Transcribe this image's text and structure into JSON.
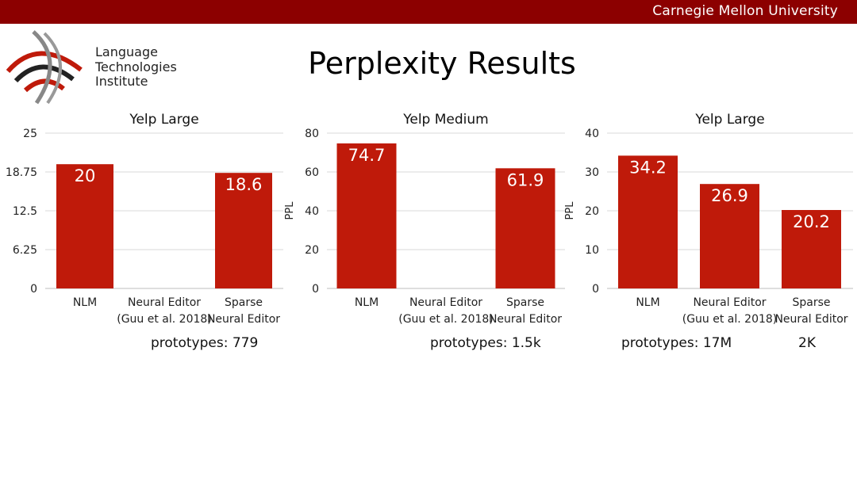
{
  "header": {
    "university": "Carnegie Mellon University",
    "institute_lines": [
      "Language",
      "Technologies",
      "Institute"
    ]
  },
  "slide_title": "Perplexity Results",
  "colors": {
    "bar": "#bf1a0a",
    "header_bar": "#8c0000",
    "grid": "#d9d9d9"
  },
  "chart_data": [
    {
      "type": "bar",
      "title": "Yelp Large",
      "ylabel": "",
      "ylim": [
        0,
        25
      ],
      "yticks": [
        "0",
        "6.25",
        "12.5",
        "18.75",
        "25"
      ],
      "categories": [
        [
          "NLM"
        ],
        [
          "Neural Editor",
          "(Guu et al. 2018)"
        ],
        [
          "Sparse",
          "Neural Editor"
        ]
      ],
      "values": [
        20,
        null,
        18.6
      ],
      "value_labels": [
        "20",
        "",
        "18.6"
      ],
      "grid": true
    },
    {
      "type": "bar",
      "title": "Yelp Medium",
      "ylabel": "PPL",
      "ylim": [
        0,
        80
      ],
      "yticks": [
        "0",
        "20",
        "40",
        "60",
        "80"
      ],
      "categories": [
        [
          "NLM"
        ],
        [
          "Neural Editor",
          "(Guu et al. 2018)"
        ],
        [
          "Sparse",
          "Neural Editor"
        ]
      ],
      "values": [
        74.7,
        null,
        61.9
      ],
      "value_labels": [
        "74.7",
        "",
        "61.9"
      ],
      "grid": true
    },
    {
      "type": "bar",
      "title": "Yelp Large",
      "ylabel": "PPL",
      "ylim": [
        0,
        40
      ],
      "yticks": [
        "0",
        "10",
        "20",
        "30",
        "40"
      ],
      "categories": [
        [
          "NLM"
        ],
        [
          "Neural Editor",
          "(Guu et al. 2018)"
        ],
        [
          "Sparse",
          "Neural Editor"
        ]
      ],
      "values": [
        34.2,
        26.9,
        20.2
      ],
      "value_labels": [
        "34.2",
        "26.9",
        "20.2"
      ],
      "grid": true
    }
  ],
  "prototypes": [
    "prototypes: 779",
    "prototypes: 1.5k",
    "prototypes: 17M",
    "2K"
  ]
}
